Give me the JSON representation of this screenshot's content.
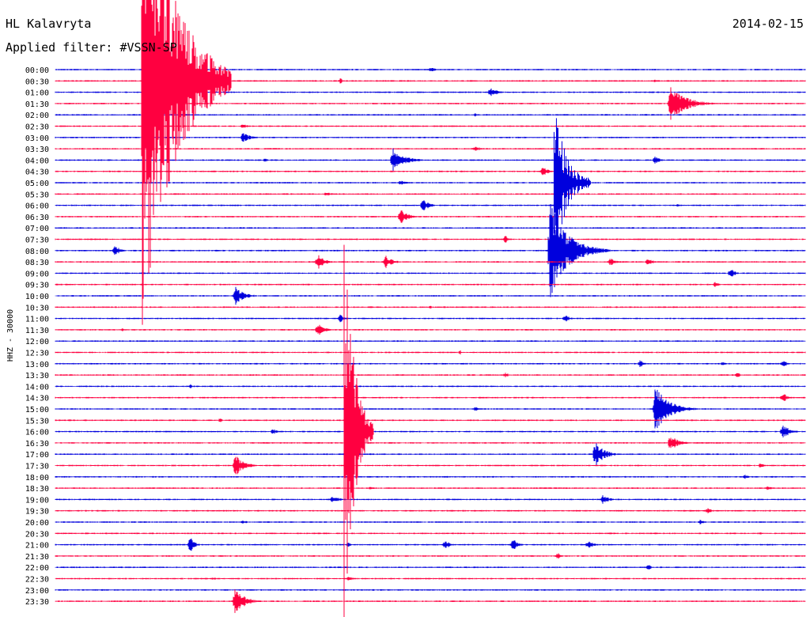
{
  "header": {
    "station": "HL Kalavryta",
    "date": "2014-02-15",
    "filter": "Applied filter: #VSSN-SP"
  },
  "chart_data": {
    "type": "helicorder",
    "ylabel": "HHZ - 30000",
    "colors": {
      "a": "#0000dd",
      "b": "#ff0040"
    },
    "rows": [
      {
        "label": "00:00",
        "color": "a",
        "events": [
          {
            "t": 0.5,
            "amp": 4,
            "dur": 0.02
          }
        ]
      },
      {
        "label": "00:30",
        "color": "b",
        "events": [
          {
            "t": 0.38,
            "amp": 4,
            "dur": 0.01
          },
          {
            "t": 0.8,
            "amp": 2,
            "dur": 0.01
          }
        ]
      },
      {
        "label": "01:00",
        "color": "a",
        "events": [
          {
            "t": 0.58,
            "amp": 7,
            "dur": 0.03
          }
        ]
      },
      {
        "label": "01:30",
        "color": "b",
        "events": [
          {
            "t": 0.82,
            "amp": 22,
            "dur": 0.07
          }
        ]
      },
      {
        "label": "02:00",
        "color": "a",
        "events": [
          {
            "t": 0.56,
            "amp": 2,
            "dur": 0.01
          }
        ]
      },
      {
        "label": "02:30",
        "color": "b",
        "events": [
          {
            "t": 0.25,
            "amp": 4,
            "dur": 0.02
          }
        ]
      },
      {
        "label": "03:00",
        "color": "a",
        "events": [
          {
            "t": 0.25,
            "amp": 7,
            "dur": 0.03
          }
        ]
      },
      {
        "label": "03:30",
        "color": "b",
        "events": [
          {
            "t": 0.56,
            "amp": 3,
            "dur": 0.03
          }
        ]
      },
      {
        "label": "04:00",
        "color": "a",
        "events": [
          {
            "t": 0.45,
            "amp": 16,
            "dur": 0.05
          },
          {
            "t": 0.8,
            "amp": 6,
            "dur": 0.02
          },
          {
            "t": 0.28,
            "amp": 3,
            "dur": 0.01
          }
        ]
      },
      {
        "label": "04:30",
        "color": "b",
        "events": [
          {
            "t": 0.65,
            "amp": 8,
            "dur": 0.02
          }
        ]
      },
      {
        "label": "05:00",
        "color": "a",
        "events": [
          {
            "t": 0.46,
            "amp": 3,
            "dur": 0.03
          }
        ]
      },
      {
        "label": "05:30",
        "color": "b",
        "events": [
          {
            "t": 0.36,
            "amp": 3,
            "dur": 0.03
          }
        ]
      },
      {
        "label": "06:00",
        "color": "a",
        "events": [
          {
            "t": 0.49,
            "amp": 8,
            "dur": 0.03
          },
          {
            "t": 0.83,
            "amp": 3,
            "dur": 0.01
          }
        ]
      },
      {
        "label": "06:30",
        "color": "b",
        "events": [
          {
            "t": 0.46,
            "amp": 12,
            "dur": 0.03
          }
        ]
      },
      {
        "label": "07:00",
        "color": "a",
        "events": []
      },
      {
        "label": "07:30",
        "color": "b",
        "events": [
          {
            "t": 0.6,
            "amp": 6,
            "dur": 0.01
          }
        ]
      },
      {
        "label": "08:00",
        "color": "a",
        "events": [
          {
            "t": 0.08,
            "amp": 8,
            "dur": 0.02
          },
          {
            "t": 0.66,
            "amp": 60,
            "dur": 0.08
          }
        ]
      },
      {
        "label": "08:30",
        "color": "b",
        "events": [
          {
            "t": 0.35,
            "amp": 10,
            "dur": 0.03
          },
          {
            "t": 0.44,
            "amp": 9,
            "dur": 0.03
          },
          {
            "t": 0.74,
            "amp": 5,
            "dur": 0.03
          },
          {
            "t": 0.79,
            "amp": 4,
            "dur": 0.03
          }
        ]
      },
      {
        "label": "09:00",
        "color": "a",
        "events": [
          {
            "t": 0.9,
            "amp": 7,
            "dur": 0.02
          }
        ]
      },
      {
        "label": "09:30",
        "color": "b",
        "events": [
          {
            "t": 0.88,
            "amp": 4,
            "dur": 0.02
          }
        ]
      },
      {
        "label": "10:00",
        "color": "a",
        "events": [
          {
            "t": 0.24,
            "amp": 12,
            "dur": 0.04
          }
        ]
      },
      {
        "label": "10:30",
        "color": "b",
        "events": [
          {
            "t": 0.5,
            "amp": 2,
            "dur": 0.02
          }
        ]
      },
      {
        "label": "11:00",
        "color": "a",
        "events": [
          {
            "t": 0.38,
            "amp": 5,
            "dur": 0.02
          },
          {
            "t": 0.68,
            "amp": 5,
            "dur": 0.02
          }
        ]
      },
      {
        "label": "11:30",
        "color": "b",
        "events": [
          {
            "t": 0.35,
            "amp": 8,
            "dur": 0.03
          },
          {
            "t": 0.09,
            "amp": 3,
            "dur": 0.005
          }
        ]
      },
      {
        "label": "12:00",
        "color": "a",
        "events": []
      },
      {
        "label": "12:30",
        "color": "b",
        "events": [
          {
            "t": 0.54,
            "amp": 3,
            "dur": 0.005
          }
        ]
      },
      {
        "label": "13:00",
        "color": "a",
        "events": [
          {
            "t": 0.78,
            "amp": 5,
            "dur": 0.02
          },
          {
            "t": 0.97,
            "amp": 5,
            "dur": 0.02
          },
          {
            "t": 0.89,
            "amp": 3,
            "dur": 0.02
          }
        ]
      },
      {
        "label": "13:30",
        "color": "b",
        "events": [
          {
            "t": 0.6,
            "amp": 3,
            "dur": 0.02
          },
          {
            "t": 0.91,
            "amp": 4,
            "dur": 0.01
          }
        ]
      },
      {
        "label": "14:00",
        "color": "a",
        "events": [
          {
            "t": 0.18,
            "amp": 3,
            "dur": 0.01
          }
        ]
      },
      {
        "label": "14:30",
        "color": "b",
        "events": [
          {
            "t": 0.97,
            "amp": 7,
            "dur": 0.02
          }
        ]
      },
      {
        "label": "15:00",
        "color": "a",
        "events": [
          {
            "t": 0.8,
            "amp": 30,
            "dur": 0.06
          },
          {
            "t": 0.56,
            "amp": 4,
            "dur": 0.02
          }
        ]
      },
      {
        "label": "15:30",
        "color": "b",
        "events": [
          {
            "t": 0.22,
            "amp": 3,
            "dur": 0.01
          }
        ]
      },
      {
        "label": "16:00",
        "color": "a",
        "events": [
          {
            "t": 0.97,
            "amp": 10,
            "dur": 0.03
          },
          {
            "t": 0.29,
            "amp": 4,
            "dur": 0.02
          }
        ]
      },
      {
        "label": "16:30",
        "color": "b",
        "events": [
          {
            "t": 0.82,
            "amp": 10,
            "dur": 0.04
          }
        ]
      },
      {
        "label": "17:00",
        "color": "a",
        "events": [
          {
            "t": 0.72,
            "amp": 16,
            "dur": 0.04
          }
        ]
      },
      {
        "label": "17:30",
        "color": "b",
        "events": [
          {
            "t": 0.24,
            "amp": 14,
            "dur": 0.04
          },
          {
            "t": 0.94,
            "amp": 3,
            "dur": 0.02
          }
        ]
      },
      {
        "label": "18:00",
        "color": "a",
        "events": [
          {
            "t": 0.92,
            "amp": 3,
            "dur": 0.02
          }
        ]
      },
      {
        "label": "18:30",
        "color": "b",
        "events": [
          {
            "t": 0.42,
            "amp": 3,
            "dur": 0.02
          },
          {
            "t": 0.95,
            "amp": 3,
            "dur": 0.02
          }
        ]
      },
      {
        "label": "19:00",
        "color": "a",
        "events": [
          {
            "t": 0.37,
            "amp": 5,
            "dur": 0.03
          },
          {
            "t": 0.73,
            "amp": 6,
            "dur": 0.03
          }
        ]
      },
      {
        "label": "19:30",
        "color": "b",
        "events": [
          {
            "t": 0.87,
            "amp": 4,
            "dur": 0.02
          },
          {
            "t": 0.3,
            "amp": 2,
            "dur": 0.01
          }
        ]
      },
      {
        "label": "20:00",
        "color": "a",
        "events": [
          {
            "t": 0.25,
            "amp": 3,
            "dur": 0.02
          },
          {
            "t": 0.86,
            "amp": 3,
            "dur": 0.02
          }
        ]
      },
      {
        "label": "20:30",
        "color": "b",
        "events": [
          {
            "t": 0.94,
            "amp": 2,
            "dur": 0.01
          }
        ]
      },
      {
        "label": "21:00",
        "color": "a",
        "events": [
          {
            "t": 0.18,
            "amp": 10,
            "dur": 0.02
          },
          {
            "t": 0.52,
            "amp": 7,
            "dur": 0.02
          },
          {
            "t": 0.61,
            "amp": 9,
            "dur": 0.02
          },
          {
            "t": 0.71,
            "amp": 5,
            "dur": 0.03
          },
          {
            "t": 0.39,
            "amp": 3,
            "dur": 0.02
          }
        ]
      },
      {
        "label": "21:30",
        "color": "b",
        "events": [
          {
            "t": 0.67,
            "amp": 5,
            "dur": 0.01
          }
        ]
      },
      {
        "label": "22:00",
        "color": "a",
        "events": [
          {
            "t": 0.79,
            "amp": 4,
            "dur": 0.02
          }
        ]
      },
      {
        "label": "22:30",
        "color": "b",
        "events": [
          {
            "t": 0.39,
            "amp": 3,
            "dur": 0.03
          },
          {
            "t": 0.21,
            "amp": 2,
            "dur": 0.02
          }
        ]
      },
      {
        "label": "23:00",
        "color": "a",
        "events": []
      },
      {
        "label": "23:30",
        "color": "b",
        "events": [
          {
            "t": 0.24,
            "amp": 18,
            "dur": 0.04
          }
        ]
      }
    ],
    "big_events": [
      {
        "row": "00:30",
        "t": 0.115,
        "color": "b",
        "amp": 320,
        "dur": 0.12
      },
      {
        "row": "16:00",
        "t": 0.385,
        "color": "b",
        "amp": 250,
        "dur": 0.04
      },
      {
        "row": "05:00",
        "t": 0.665,
        "color": "a",
        "amp": 100,
        "dur": 0.05
      }
    ]
  }
}
